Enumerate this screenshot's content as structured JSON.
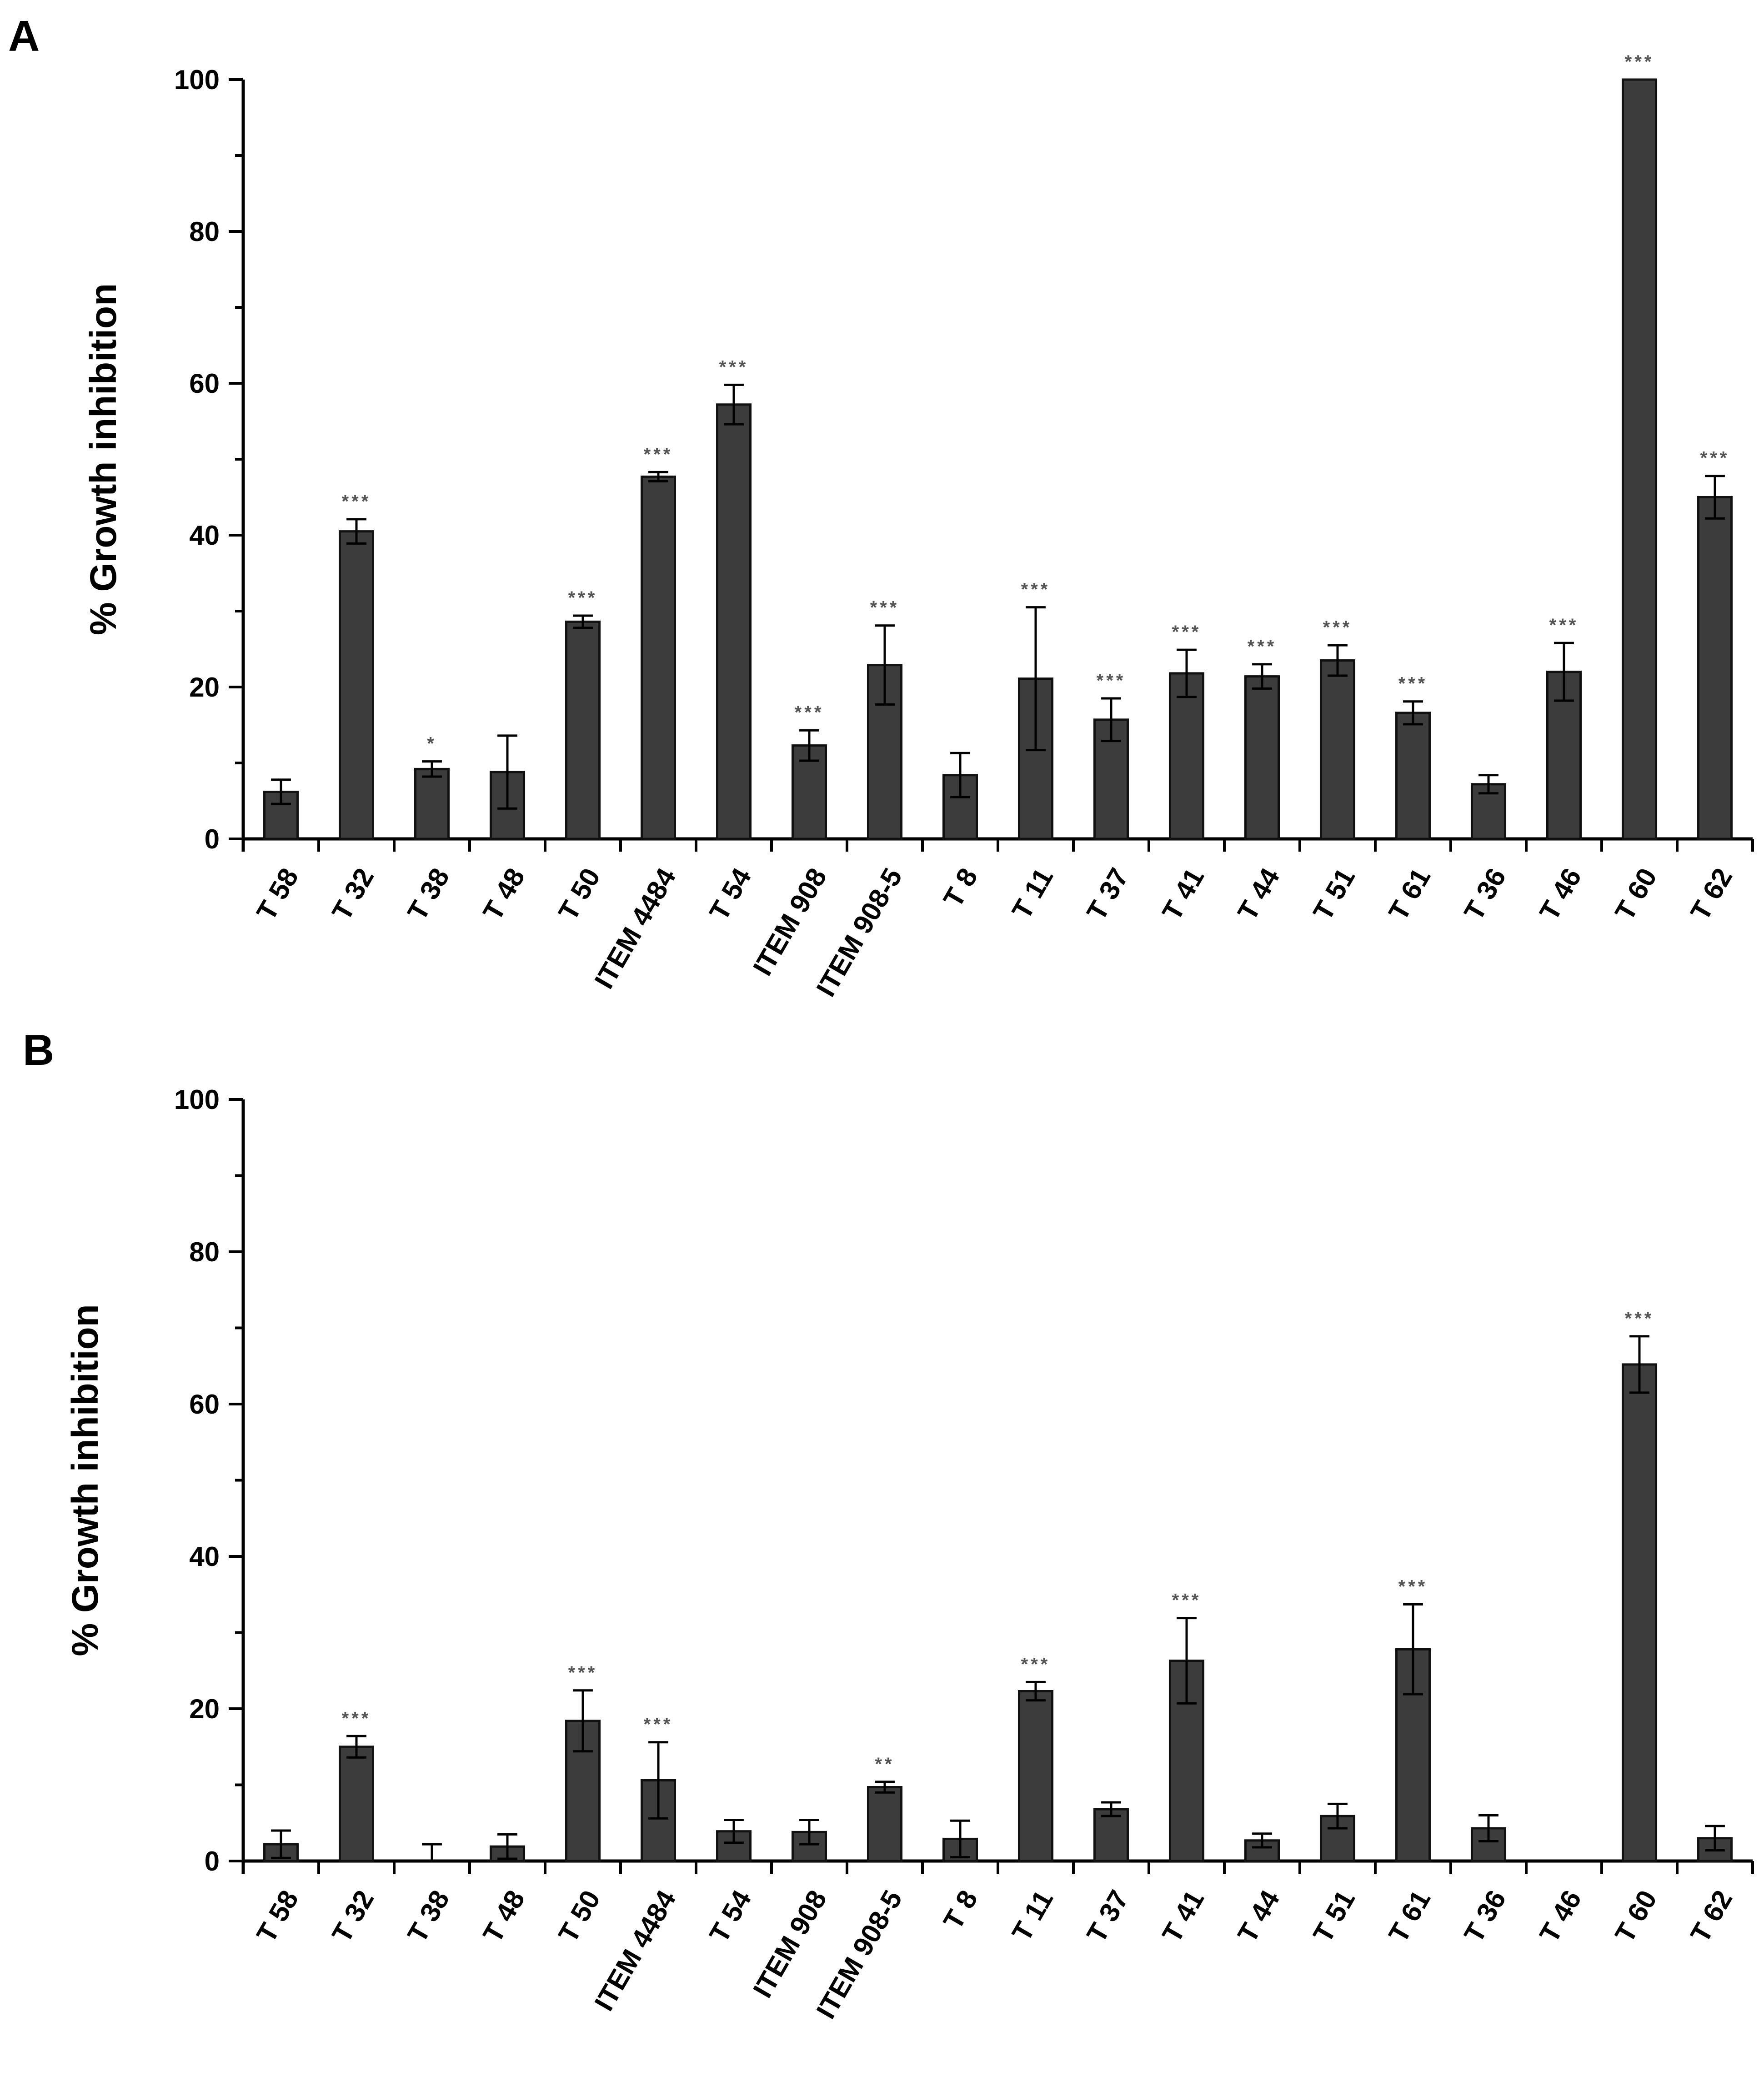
{
  "chart_data": [
    {
      "panel": "A",
      "type": "bar",
      "ylabel": "% Growth inhibition",
      "xlabel": "",
      "ylim": [
        0,
        100
      ],
      "yticks": [
        0,
        20,
        40,
        60,
        80,
        100
      ],
      "categories": [
        "T 58",
        "T 32",
        "T 38",
        "T 48",
        "T 50",
        "ITEM 4484",
        "T 54",
        "ITEM 908",
        "ITEM 908-5",
        "T 8",
        "T 11",
        "T 37",
        "T 41",
        "T 44",
        "T 51",
        "T 61",
        "T 36",
        "T 46",
        "T 60",
        "T 62"
      ],
      "values": [
        6.2,
        40.5,
        9.2,
        8.8,
        28.6,
        47.7,
        57.2,
        12.3,
        22.9,
        8.4,
        21.1,
        15.7,
        21.8,
        21.4,
        23.5,
        16.6,
        7.2,
        22.0,
        100,
        45.0
      ],
      "errors": [
        1.6,
        1.6,
        1.0,
        4.8,
        0.8,
        0.6,
        2.6,
        2.0,
        5.2,
        2.9,
        9.4,
        2.8,
        3.1,
        1.6,
        2.0,
        1.5,
        1.2,
        3.8,
        0,
        2.8
      ],
      "significance": [
        "",
        "***",
        "*",
        "",
        "***",
        "***",
        "***",
        "***",
        "***",
        "",
        "***",
        "***",
        "***",
        "***",
        "***",
        "***",
        "",
        "***",
        "***",
        "***"
      ],
      "bar_color": "#3c3c3c"
    },
    {
      "panel": "B",
      "type": "bar",
      "ylabel": "% Growth inhibition",
      "xlabel": "",
      "ylim": [
        0,
        100
      ],
      "yticks": [
        0,
        20,
        40,
        60,
        80,
        100
      ],
      "categories": [
        "T 58",
        "T 32",
        "T 38",
        "T 48",
        "T 50",
        "ITEM 4484",
        "T 54",
        "ITEM 908",
        "ITEM 908-5",
        "T 8",
        "T 11",
        "T 37",
        "T 41",
        "T 44",
        "T 51",
        "T 61",
        "T 36",
        "T 46",
        "T 60",
        "T 62"
      ],
      "values": [
        2.2,
        15.0,
        0,
        1.9,
        18.4,
        10.6,
        3.9,
        3.8,
        9.7,
        2.9,
        22.3,
        6.8,
        26.3,
        2.7,
        5.9,
        27.8,
        4.3,
        0,
        65.2,
        3.0
      ],
      "errors": [
        1.8,
        1.4,
        2.2,
        1.6,
        4.0,
        5.0,
        1.5,
        1.6,
        0.7,
        2.4,
        1.2,
        0.9,
        5.6,
        0.9,
        1.6,
        5.9,
        1.7,
        0,
        3.7,
        1.6
      ],
      "significance": [
        "",
        "***",
        "",
        "",
        "***",
        "***",
        "",
        "",
        "**",
        "",
        "***",
        "",
        "***",
        "",
        "",
        "***",
        "",
        "",
        "***",
        ""
      ],
      "bar_color": "#3c3c3c"
    }
  ]
}
